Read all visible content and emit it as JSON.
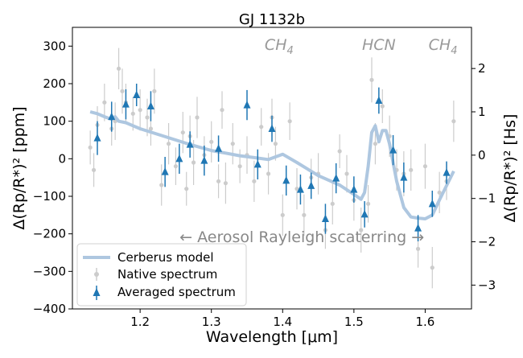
{
  "chart_data": {
    "type": "scatter",
    "title": "GJ 1132b",
    "xlabel": "Wavelength [μm]",
    "ylabel": "Δ(Rp/R*)² [ppm]",
    "ylabel_right": "Δ(Rp/R*)² [Hs]",
    "xlim": [
      1.105,
      1.665
    ],
    "ylim": [
      -400,
      350
    ],
    "ylim_right": [
      -3.55,
      2.95
    ],
    "x_ticks": [
      1.2,
      1.3,
      1.4,
      1.5,
      1.6
    ],
    "x_tick_labels": [
      "1.2",
      "1.3",
      "1.4",
      "1.5",
      "1.6"
    ],
    "y_ticks": [
      -400,
      -300,
      -200,
      -100,
      0,
      100,
      200,
      300
    ],
    "y_tick_labels": [
      "−400",
      "−300",
      "−200",
      "−100",
      "0",
      "100",
      "200",
      "300"
    ],
    "y_right_ticks": [
      -3,
      -2,
      -1,
      0,
      1,
      2
    ],
    "y_right_tick_labels": [
      "−3",
      "−2",
      "−1",
      "0",
      "1",
      "2"
    ],
    "grid": false,
    "legend_position": "lower-left",
    "colors": {
      "model": "#aec7e0",
      "native": "#cccccc",
      "averaged": "#1f77b4"
    },
    "annotations": [
      {
        "text": "CH4",
        "x": 1.395,
        "y": 290
      },
      {
        "text": "HCN",
        "x": 1.535,
        "y": 290
      },
      {
        "text": "CH4",
        "x": 1.625,
        "y": 290
      }
    ],
    "rayleigh_text": "← Aerosol Rayleigh scaterring →",
    "rayleigh_pos": {
      "x": 1.235,
      "y": -222
    },
    "series": [
      {
        "name": "Cerberus model",
        "style": "line",
        "x": [
          1.13,
          1.14,
          1.15,
          1.16,
          1.165,
          1.17,
          1.18,
          1.19,
          1.2,
          1.22,
          1.25,
          1.27,
          1.3,
          1.32,
          1.34,
          1.36,
          1.38,
          1.39,
          1.4,
          1.42,
          1.45,
          1.48,
          1.5,
          1.51,
          1.515,
          1.52,
          1.525,
          1.53,
          1.535,
          1.54,
          1.545,
          1.55,
          1.56,
          1.57,
          1.58,
          1.59,
          1.6,
          1.61,
          1.62,
          1.64
        ],
        "y": [
          125,
          120,
          112,
          105,
          112,
          100,
          96,
          88,
          80,
          68,
          50,
          38,
          22,
          15,
          8,
          3,
          -2,
          5,
          12,
          -10,
          -45,
          -70,
          -95,
          -108,
          -90,
          -20,
          70,
          88,
          45,
          75,
          75,
          40,
          -60,
          -130,
          -155,
          -158,
          -160,
          -150,
          -110,
          -33
        ]
      },
      {
        "name": "Native spectrum",
        "style": "points",
        "x": [
          1.13,
          1.135,
          1.14,
          1.15,
          1.16,
          1.165,
          1.17,
          1.175,
          1.18,
          1.19,
          1.2,
          1.21,
          1.215,
          1.22,
          1.23,
          1.24,
          1.25,
          1.26,
          1.265,
          1.27,
          1.275,
          1.28,
          1.29,
          1.3,
          1.31,
          1.315,
          1.32,
          1.33,
          1.34,
          1.35,
          1.36,
          1.37,
          1.38,
          1.385,
          1.39,
          1.4,
          1.41,
          1.42,
          1.43,
          1.44,
          1.45,
          1.46,
          1.47,
          1.48,
          1.49,
          1.5,
          1.51,
          1.52,
          1.525,
          1.53,
          1.54,
          1.55,
          1.56,
          1.57,
          1.58,
          1.59,
          1.6,
          1.61,
          1.62,
          1.63,
          1.64
        ],
        "y": [
          30,
          -30,
          90,
          150,
          80,
          100,
          240,
          180,
          150,
          120,
          130,
          110,
          80,
          180,
          -70,
          40,
          -20,
          70,
          -80,
          60,
          -10,
          110,
          10,
          45,
          -60,
          130,
          -65,
          40,
          -20,
          10,
          -60,
          85,
          -40,
          110,
          40,
          -150,
          100,
          -80,
          -150,
          -50,
          -40,
          -190,
          -120,
          20,
          -40,
          -110,
          -190,
          -120,
          210,
          40,
          140,
          60,
          -30,
          -40,
          -30,
          -240,
          -20,
          -290,
          -90,
          -60,
          100
        ],
        "err": [
          45,
          45,
          50,
          50,
          45,
          50,
          55,
          60,
          50,
          45,
          55,
          50,
          45,
          60,
          55,
          55,
          50,
          55,
          45,
          55,
          60,
          55,
          50,
          55,
          45,
          50,
          55,
          55,
          45,
          50,
          55,
          50,
          55,
          50,
          45,
          55,
          50,
          55,
          55,
          50,
          55,
          50,
          55,
          45,
          50,
          55,
          60,
          50,
          60,
          55,
          45,
          55,
          55,
          60,
          55,
          50,
          60,
          55,
          55,
          50,
          55
        ]
      },
      {
        "name": "Averaged spectrum",
        "style": "markers",
        "x": [
          1.14,
          1.16,
          1.18,
          1.195,
          1.215,
          1.235,
          1.255,
          1.27,
          1.29,
          1.31,
          1.35,
          1.365,
          1.385,
          1.405,
          1.425,
          1.44,
          1.46,
          1.475,
          1.5,
          1.515,
          1.535,
          1.555,
          1.57,
          1.59,
          1.61,
          1.63
        ],
        "y": [
          55,
          112,
          145,
          170,
          140,
          -35,
          0,
          38,
          -5,
          27,
          143,
          -15,
          80,
          -58,
          -82,
          -72,
          -160,
          -52,
          -82,
          -148,
          155,
          23,
          -50,
          -185,
          -120,
          -37
        ],
        "err": [
          45,
          40,
          40,
          30,
          40,
          40,
          40,
          35,
          40,
          35,
          40,
          40,
          35,
          40,
          40,
          35,
          40,
          40,
          35,
          35,
          35,
          40,
          40,
          35,
          35,
          30
        ]
      }
    ]
  }
}
